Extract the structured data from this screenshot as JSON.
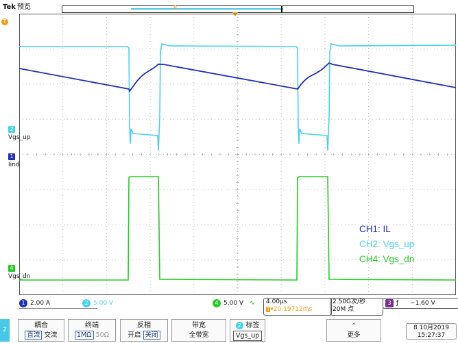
{
  "header": {
    "brand": "Tek",
    "mode": "预览",
    "marker": "R"
  },
  "channels": {
    "ch1": {
      "label": "Iind",
      "number": "1",
      "color": "#1f2fb8"
    },
    "ch2": {
      "label": "Vgs_up",
      "number": "2",
      "color": "#46d2ef"
    },
    "ch4": {
      "label": "Vgs_dn",
      "number": "4",
      "color": "#22cc22"
    }
  },
  "legend": {
    "ch1": "CH1: IL",
    "ch2": "CH2: Vgs_up",
    "ch4": "CH4: Vgs_dn"
  },
  "status": {
    "ch1_scale": "2.00 A",
    "ch2_scale": "5.00 V",
    "ch4_scale": "5.00 V",
    "bw_icon": "∿",
    "timebase": "4.00µs",
    "position": "▾20.19712ms",
    "position_prefix": "T",
    "sample_rate": "2.50G次/秒",
    "record_length": "20M 点",
    "trig_channel": "3",
    "trig_slope": "ƒ",
    "trig_level": "−1.60 V"
  },
  "softbar": {
    "side_number": "2",
    "coupling_title": "耦合",
    "coupling_dc": "直流",
    "coupling_ac": "交流",
    "termination_title": "终端",
    "term_1m": "1MΩ",
    "term_50": "50Ω",
    "invert_title": "反相",
    "invert_on": "开启",
    "invert_off": "关闭",
    "bandwidth_title": "带宽",
    "bandwidth_value": "全带宽",
    "label_badge": "2",
    "label_title": "标签",
    "label_value": "Vgs_up",
    "more_label": "更多",
    "date": "8 10月2019",
    "time": "15:27:37"
  },
  "colors": {
    "grid": "#aaaaaa",
    "trigger": "#f39a12"
  }
}
